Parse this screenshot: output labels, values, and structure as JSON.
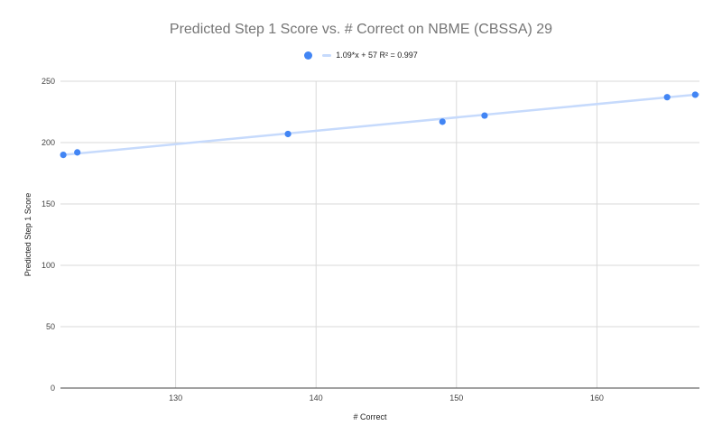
{
  "chart_data": {
    "type": "scatter",
    "title": "Predicted Step 1 Score vs. # Correct on NBME (CBSSA) 29",
    "xlabel": "# Correct",
    "ylabel": "Predicted Step 1 Score",
    "xlim": [
      121.8,
      167.3
    ],
    "ylim": [
      0,
      250
    ],
    "xticks": [
      130,
      140,
      150,
      160
    ],
    "yticks": [
      0,
      50,
      100,
      150,
      200,
      250
    ],
    "grid": true,
    "legend_position": "top",
    "series": [
      {
        "name": "Predicted Step 1 Score",
        "color": "#4285f4",
        "x": [
          122,
          123,
          138,
          149,
          152,
          165,
          167
        ],
        "y": [
          190,
          192,
          207,
          217,
          222,
          237,
          239
        ]
      }
    ],
    "trendline": {
      "type": "linear",
      "slope": 1.09,
      "intercept": 57,
      "r_squared": 0.997,
      "label": "1.09*x + 57 R² = 0.997",
      "color": "#c6dafc"
    }
  },
  "legend": {
    "trendline_label": "1.09*x + 57 R² = 0.997"
  }
}
